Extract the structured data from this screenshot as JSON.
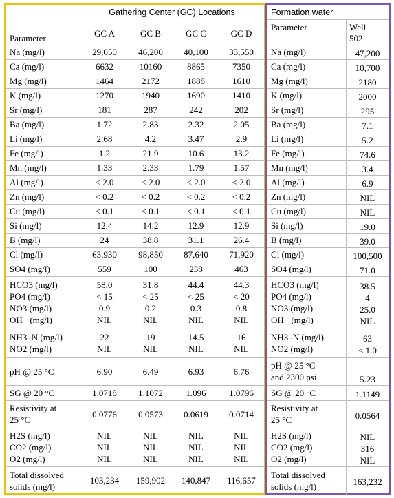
{
  "gc_header": "Gathering Center (GC) Locations",
  "gc_param_label": "Parameter",
  "gc_columns": [
    "GC A",
    "GC B",
    "GC C",
    "GC D"
  ],
  "fw_header": "Formation water",
  "fw_param_label": "Parameter",
  "fw_well_label": "Well",
  "fw_well_number": "502",
  "rows": [
    {
      "gc_param": [
        "Na (mg/l)"
      ],
      "gc": [
        [
          "29,050"
        ],
        [
          "46,200"
        ],
        [
          "40,100"
        ],
        [
          "33,550"
        ]
      ],
      "fw_param": [
        "Na (mg/l)"
      ],
      "fw": [
        "47,200"
      ]
    },
    {
      "gc_param": [
        "Ca (mg/l)"
      ],
      "gc": [
        [
          "6632"
        ],
        [
          "10160"
        ],
        [
          "8865"
        ],
        [
          "7350"
        ]
      ],
      "fw_param": [
        "Ca (mg/l)"
      ],
      "fw": [
        "10,700"
      ]
    },
    {
      "gc_param": [
        "Mg (mg/l)"
      ],
      "gc": [
        [
          "1464"
        ],
        [
          "2172"
        ],
        [
          "1888"
        ],
        [
          "1610"
        ]
      ],
      "fw_param": [
        "Mg (mg/l)"
      ],
      "fw": [
        "2180"
      ]
    },
    {
      "gc_param": [
        "K (mg/l)"
      ],
      "gc": [
        [
          "1270"
        ],
        [
          "1940"
        ],
        [
          "1690"
        ],
        [
          "1410"
        ]
      ],
      "fw_param": [
        "K (mg/l)"
      ],
      "fw": [
        "2000"
      ]
    },
    {
      "gc_param": [
        "Sr (mg/l)"
      ],
      "gc": [
        [
          "181"
        ],
        [
          "287"
        ],
        [
          "242"
        ],
        [
          "202"
        ]
      ],
      "fw_param": [
        "Sr (mg/l)"
      ],
      "fw": [
        "295"
      ]
    },
    {
      "gc_param": [
        "Ba (mg/l)"
      ],
      "gc": [
        [
          "1.72"
        ],
        [
          "2.83"
        ],
        [
          "2.32"
        ],
        [
          "2.05"
        ]
      ],
      "fw_param": [
        "Ba (mg/l)"
      ],
      "fw": [
        "7.1"
      ]
    },
    {
      "gc_param": [
        "Li (mg/l)"
      ],
      "gc": [
        [
          "2.68"
        ],
        [
          "4.2"
        ],
        [
          "3.47"
        ],
        [
          "2.9"
        ]
      ],
      "fw_param": [
        "Li (mg/l)"
      ],
      "fw": [
        "5.2"
      ]
    },
    {
      "gc_param": [
        "Fe (mg/l)"
      ],
      "gc": [
        [
          "1.2"
        ],
        [
          "21.9"
        ],
        [
          "10.6"
        ],
        [
          "13.2"
        ]
      ],
      "fw_param": [
        "Fe (mg/l)"
      ],
      "fw": [
        "74.6"
      ]
    },
    {
      "gc_param": [
        "Mn (mg/l)"
      ],
      "gc": [
        [
          "1.33"
        ],
        [
          "2.33"
        ],
        [
          "1.79"
        ],
        [
          "1.57"
        ]
      ],
      "fw_param": [
        "Mn (mg/l)"
      ],
      "fw": [
        "3.4"
      ]
    },
    {
      "gc_param": [
        "Al (mg/l)"
      ],
      "gc": [
        [
          "< 2.0"
        ],
        [
          "< 2.0"
        ],
        [
          "< 2.0"
        ],
        [
          "< 2.0"
        ]
      ],
      "fw_param": [
        "Al (mg/l)"
      ],
      "fw": [
        "6.9"
      ]
    },
    {
      "gc_param": [
        "Zn (mg/l)"
      ],
      "gc": [
        [
          "< 0.2"
        ],
        [
          "< 0.2"
        ],
        [
          "< 0.2"
        ],
        [
          "< 0.2"
        ]
      ],
      "fw_param": [
        "Zn (mg/l)"
      ],
      "fw": [
        "NIL"
      ]
    },
    {
      "gc_param": [
        "Cu (mg/l)"
      ],
      "gc": [
        [
          "< 0.1"
        ],
        [
          "< 0.1"
        ],
        [
          "< 0.1"
        ],
        [
          "< 0.1"
        ]
      ],
      "fw_param": [
        "Cu (mg/l)"
      ],
      "fw": [
        "NIL"
      ]
    },
    {
      "gc_param": [
        "Si (mg/l)"
      ],
      "gc": [
        [
          "12.4"
        ],
        [
          "14.2"
        ],
        [
          "12.9"
        ],
        [
          "12.9"
        ]
      ],
      "fw_param": [
        "Si (mg/l)"
      ],
      "fw": [
        "19.0"
      ]
    },
    {
      "gc_param": [
        "B (mg/l)"
      ],
      "gc": [
        [
          "24"
        ],
        [
          "38.8"
        ],
        [
          "31.1"
        ],
        [
          "26.4"
        ]
      ],
      "fw_param": [
        "B (mg/l)"
      ],
      "fw": [
        "39.0"
      ]
    },
    {
      "gc_param": [
        "Cl (mg/l)"
      ],
      "gc": [
        [
          "63,930"
        ],
        [
          "98,850"
        ],
        [
          "87,640"
        ],
        [
          "71,920"
        ]
      ],
      "fw_param": [
        "Cl (mg/l)"
      ],
      "fw": [
        "100,500"
      ]
    },
    {
      "gc_param": [
        "SO4 (mg/l)"
      ],
      "gc": [
        [
          "559"
        ],
        [
          "100"
        ],
        [
          "238"
        ],
        [
          "463"
        ]
      ],
      "fw_param": [
        "SO4 (mg/l)"
      ],
      "fw": [
        "71.0"
      ]
    },
    {
      "gc_param": [
        "HCO3 (mg/l)",
        "PO4 (mg/l)",
        "NO3 (mg/l)",
        "OH− (mg/l)"
      ],
      "gc": [
        [
          "58.0",
          "< 15",
          "0.9",
          "NIL"
        ],
        [
          "31.8",
          "< 25",
          "0.2",
          "NIL"
        ],
        [
          "44.4",
          "< 25",
          "0.3",
          "NIL"
        ],
        [
          "44.3",
          "< 20",
          "0.8",
          "NIL"
        ]
      ],
      "fw_param": [
        "HCO3 (mg/l)",
        "PO4 (mg/l)",
        "NO3 (mg/l)",
        "OH− (mg/l)"
      ],
      "fw": [
        "38.5",
        "4",
        "25.0",
        "NIL"
      ]
    },
    {
      "gc_param": [
        "NH3–N (mg/l)",
        "NO2 (mg/l)"
      ],
      "gc": [
        [
          "22",
          "NIL"
        ],
        [
          "19",
          "NIL"
        ],
        [
          "14.5",
          "NIL"
        ],
        [
          "16",
          "NIL"
        ]
      ],
      "fw_param": [
        "NH3–N (mg/l)",
        "NO2 (mg/l)"
      ],
      "fw": [
        "63",
        "< 1.0"
      ]
    },
    {
      "gc_param": [
        "pH @ 25 °C"
      ],
      "gc": [
        [
          "6.90"
        ],
        [
          "6.49"
        ],
        [
          "6.93"
        ],
        [
          "6.76"
        ]
      ],
      "fw_param": [
        "pH @ 25 °C",
        "and 2300 psi"
      ],
      "fw": [
        "5.23"
      ]
    },
    {
      "gc_param": [
        "SG @ 20 °C"
      ],
      "gc": [
        [
          "1.0718"
        ],
        [
          "1.1072"
        ],
        [
          "1.096"
        ],
        [
          "1.0796"
        ]
      ],
      "fw_param": [
        "SG @ 20 °C"
      ],
      "fw": [
        "1.1149"
      ]
    },
    {
      "gc_param": [
        "Resistivity at",
        "25 °C"
      ],
      "gc": [
        [
          "0.0776"
        ],
        [
          "0.0573"
        ],
        [
          "0.0619"
        ],
        [
          "0.0714"
        ]
      ],
      "fw_param": [
        "Resistivity at",
        "25 °C"
      ],
      "fw": [
        "0.0564"
      ]
    },
    {
      "gc_param": [
        "H2S (mg/l)",
        "CO2 (mg/l)",
        "O2 (mg/l)"
      ],
      "gc": [
        [
          "NIL",
          "NIL",
          "NIL"
        ],
        [
          "NIL",
          "NIL",
          "NIL"
        ],
        [
          "NIL",
          "NIL",
          "NIL"
        ],
        [
          "NIL",
          "NIL",
          "NIL"
        ]
      ],
      "fw_param": [
        "H2S (mg/l)",
        "CO2 (mg/l)",
        "O2 (mg/l)"
      ],
      "fw": [
        "NIL",
        "316",
        "NIL"
      ]
    },
    {
      "gc_param": [
        "Total dissolved",
        "solids (mg/l)"
      ],
      "gc": [
        [
          "103,234"
        ],
        [
          "159,902"
        ],
        [
          "140,847"
        ],
        [
          "116,657"
        ]
      ],
      "fw_param": [
        "Total dissolved",
        "solids (mg/l)"
      ],
      "fw": [
        "163,232"
      ]
    }
  ]
}
